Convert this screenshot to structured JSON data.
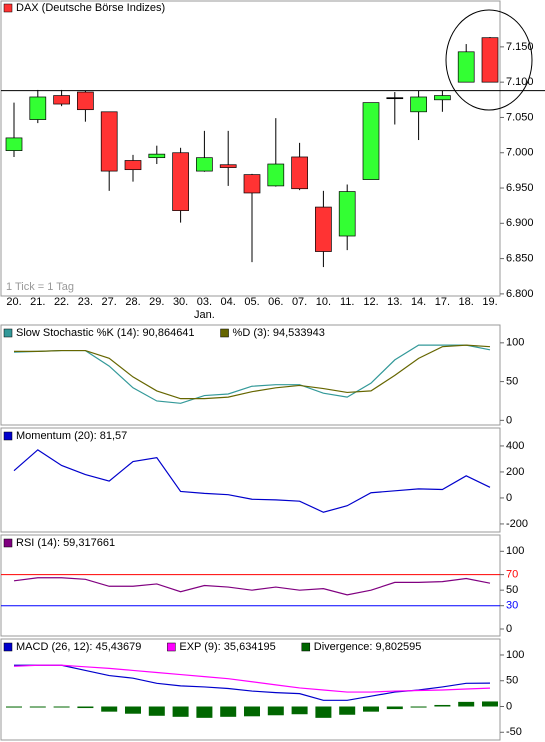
{
  "chart_data": [
    {
      "type": "candlestick",
      "title": "DAX (Deutsche Börse Indizes)",
      "color": "#ff3333",
      "note": "1 Tick = 1 Tag",
      "categories": [
        "20.",
        "21.",
        "22.",
        "23.",
        "27.",
        "28.",
        "29.",
        "30.",
        "03.",
        "04.",
        "05.",
        "06.",
        "07.",
        "10.",
        "11.",
        "12.",
        "13.",
        "14.",
        "17.",
        "18.",
        "19."
      ],
      "month_labels": [
        null,
        null,
        null,
        null,
        null,
        null,
        null,
        null,
        "Jan.",
        null,
        null,
        null,
        null,
        null,
        null,
        null,
        null,
        null,
        null,
        null,
        null
      ],
      "open": [
        7.003,
        7.047,
        7.081,
        7.086,
        7.058,
        6.989,
        6.993,
        7.0,
        6.974,
        6.983,
        6.969,
        6.953,
        6.994,
        6.923,
        6.882,
        6.962,
        7.078,
        7.058,
        7.075,
        7.1,
        7.163
      ],
      "high": [
        7.071,
        7.089,
        7.089,
        7.088,
        7.058,
        6.997,
        7.01,
        7.007,
        7.031,
        7.031,
        6.97,
        7.049,
        7.014,
        6.946,
        6.955,
        7.071,
        7.086,
        7.088,
        7.088,
        7.154,
        7.164
      ],
      "low": [
        6.994,
        7.042,
        7.066,
        7.044,
        6.946,
        6.959,
        6.984,
        6.901,
        6.973,
        6.953,
        6.845,
        6.952,
        6.947,
        6.838,
        6.862,
        6.962,
        7.04,
        7.018,
        7.058,
        7.1,
        7.1
      ],
      "close": [
        7.021,
        7.079,
        7.069,
        7.061,
        6.974,
        6.976,
        6.998,
        6.918,
        6.993,
        6.979,
        6.943,
        6.984,
        6.949,
        6.86,
        6.945,
        7.071,
        7.078,
        7.079,
        7.081,
        7.143,
        7.1
      ],
      "up_color": "#33ff33",
      "down_color": "#ff3333",
      "reference_line": 7.088,
      "ylim": [
        6.797,
        7.215
      ],
      "yticks": [
        {
          "value": 6.8,
          "label": "6.800"
        },
        {
          "value": 6.85,
          "label": "6.850"
        },
        {
          "value": 6.9,
          "label": "6.900"
        },
        {
          "value": 6.95,
          "label": "6.950"
        },
        {
          "value": 7.0,
          "label": "7.000"
        },
        {
          "value": 7.05,
          "label": "7.050"
        },
        {
          "value": 7.1,
          "label": "7.100"
        },
        {
          "value": 7.15,
          "label": "7.150"
        }
      ]
    },
    {
      "type": "line",
      "series": [
        {
          "name": "Slow Stochastic %K (14): 90,864641",
          "color": "#339999",
          "values": [
            88,
            89,
            90,
            90,
            70,
            42,
            25,
            22,
            32,
            34,
            44,
            46,
            46,
            35,
            30,
            48,
            78,
            97,
            97,
            97,
            91
          ]
        },
        {
          "name": "%D (3): 94,533943",
          "color": "#666600",
          "values": [
            89,
            89,
            90,
            90,
            80,
            56,
            38,
            28,
            28,
            30,
            37,
            42,
            45,
            41,
            36,
            38,
            58,
            80,
            95,
            97,
            95
          ]
        }
      ],
      "ylim": [
        -6,
        123
      ],
      "yticks": [
        0,
        50,
        100
      ]
    },
    {
      "type": "line",
      "series": [
        {
          "name": "Momentum (20): 81,57",
          "color": "#0000cc",
          "values": [
            210,
            370,
            250,
            180,
            130,
            280,
            310,
            50,
            35,
            25,
            -10,
            -15,
            -25,
            -110,
            -60,
            40,
            55,
            70,
            65,
            170,
            82
          ]
        }
      ],
      "ylim": [
        -262,
        538
      ],
      "yticks": [
        -200,
        0,
        200,
        400
      ]
    },
    {
      "type": "line",
      "series": [
        {
          "name": "RSI (14): 59,317661",
          "color": "#800080",
          "values": [
            62,
            66,
            66,
            64,
            55,
            55,
            58,
            48,
            56,
            54,
            50,
            54,
            50,
            52,
            44,
            50,
            60,
            60,
            61,
            65,
            59
          ]
        }
      ],
      "levels": [
        {
          "value": 70,
          "color": "#ff0000"
        },
        {
          "value": 30,
          "color": "#0000ff"
        }
      ],
      "ylim": [
        -9,
        121
      ],
      "yticks": [
        0,
        30,
        50,
        70,
        100
      ]
    },
    {
      "type": "combo",
      "series": [
        {
          "name": "MACD (26, 12): 45,43679",
          "color": "#0000cc",
          "kind": "line",
          "values": [
            80,
            80,
            80,
            70,
            60,
            55,
            45,
            40,
            38,
            35,
            30,
            27,
            25,
            12,
            12,
            20,
            28,
            32,
            38,
            45,
            45.44
          ]
        },
        {
          "name": "EXP (9): 35,634195",
          "color": "#ff00ff",
          "kind": "line",
          "values": [
            78,
            80,
            80,
            77,
            74,
            70,
            66,
            62,
            58,
            54,
            48,
            42,
            36,
            32,
            28,
            28,
            30,
            31,
            32,
            34,
            35.63
          ]
        },
        {
          "name": "Divergence: 9,802595",
          "color": "#006600",
          "kind": "bar",
          "values": [
            -2,
            0,
            0,
            -3,
            -10,
            -14,
            -18,
            -20,
            -22,
            -20,
            -19,
            -17,
            -15,
            -22,
            -16,
            -10,
            -5,
            -2,
            3,
            9,
            9.8
          ]
        }
      ],
      "ylim": [
        -65,
        131
      ],
      "yticks": [
        -50,
        0,
        50,
        100
      ]
    }
  ]
}
